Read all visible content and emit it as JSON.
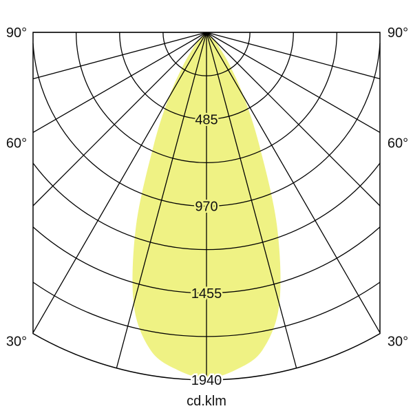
{
  "chart_data": {
    "type": "polar",
    "unit_label": "cd.klm",
    "radial_ticks": [
      485,
      970,
      1455,
      1940
    ],
    "radial_max": 1940,
    "angle_labels": [
      "90°",
      "60°",
      "30°"
    ],
    "angle_label_values": [
      90,
      60,
      30
    ],
    "gridline_angle_step_deg": 15,
    "grid": true,
    "fill_color": "#eff284",
    "series": [
      {
        "symmetric": true,
        "angles_deg": [
          0,
          5,
          10,
          15,
          20,
          25,
          30,
          35,
          40,
          45,
          50,
          60,
          90
        ],
        "values": [
          1930,
          1890,
          1800,
          1570,
          1150,
          700,
          420,
          230,
          120,
          60,
          30,
          10,
          0
        ]
      }
    ]
  }
}
